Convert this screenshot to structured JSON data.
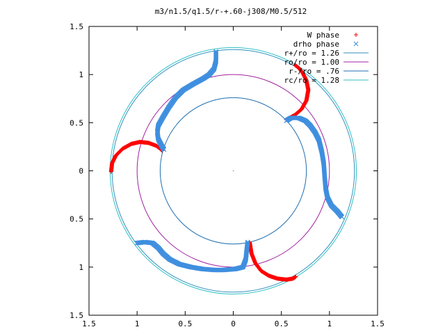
{
  "chart_data": {
    "type": "scatter",
    "title": "m3/n1.5/q1.5/r-+.60-j308/M0.5/512",
    "xlabel": "",
    "ylabel": "",
    "xlim": [
      -1.5,
      1.5
    ],
    "ylim": [
      -1.5,
      1.5
    ],
    "x_ticks": [
      -1.5,
      -1,
      -0.5,
      0,
      0.5,
      1,
      1.5
    ],
    "x_tick_labels": [
      "1.5",
      "1",
      "0.5",
      "0",
      "0.5",
      "1",
      "1.5"
    ],
    "y_ticks": [
      1.5,
      1,
      0.5,
      0,
      -0.5,
      -1,
      -1.5
    ],
    "y_tick_labels": [
      "1.5",
      "1",
      "0.5",
      "0",
      "0.5",
      "1",
      "1.5"
    ],
    "grid": false,
    "legend_position": "top-right",
    "circles": [
      {
        "label": "r+/ro = 1.26",
        "radius": 1.26,
        "color": "#2f8fbf"
      },
      {
        "label": "ro/ro = 1.00",
        "radius": 1.0,
        "color": "#a020a0"
      },
      {
        "label": "r-/ro = .76",
        "radius": 0.76,
        "color": "#1f6fb0"
      },
      {
        "label": "rc/ro = 1.28",
        "radius": 1.28,
        "color": "#30c0c0"
      }
    ],
    "series": [
      {
        "name": "W phase",
        "marker": "+",
        "color": "#ff0000",
        "arms": [
          [
            [
              -1.27,
              -0.01
            ],
            [
              -1.26,
              0.08
            ],
            [
              -1.22,
              0.16
            ],
            [
              -1.15,
              0.23
            ],
            [
              -1.06,
              0.28
            ],
            [
              -0.97,
              0.3
            ],
            [
              -0.88,
              0.29
            ],
            [
              -0.8,
              0.26
            ],
            [
              -0.76,
              0.23
            ],
            [
              -0.74,
              0.21
            ]
          ],
          [
            [
              0.17,
              -0.74
            ],
            [
              0.19,
              -0.86
            ],
            [
              0.23,
              -0.96
            ],
            [
              0.29,
              -1.04
            ],
            [
              0.37,
              -1.09
            ],
            [
              0.46,
              -1.12
            ],
            [
              0.55,
              -1.13
            ],
            [
              0.62,
              -1.12
            ],
            [
              0.65,
              -1.1
            ]
          ],
          [
            [
              0.55,
              0.53
            ],
            [
              0.64,
              0.58
            ],
            [
              0.71,
              0.64
            ],
            [
              0.76,
              0.73
            ],
            [
              0.78,
              0.84
            ],
            [
              0.76,
              0.94
            ],
            [
              0.72,
              1.02
            ],
            [
              0.68,
              1.07
            ],
            [
              0.64,
              1.1
            ]
          ]
        ]
      },
      {
        "name": "drho phase",
        "marker": "x",
        "color": "#3f8fdf",
        "arms": [
          [
            [
              -0.18,
              1.24
            ],
            [
              -0.18,
              1.14
            ],
            [
              -0.2,
              1.06
            ],
            [
              -0.25,
              1.0
            ],
            [
              -0.31,
              0.96
            ],
            [
              -0.42,
              0.9
            ],
            [
              -0.52,
              0.84
            ],
            [
              -0.6,
              0.76
            ],
            [
              -0.67,
              0.66
            ],
            [
              -0.73,
              0.56
            ],
            [
              -0.78,
              0.47
            ],
            [
              -0.79,
              0.4
            ],
            [
              -0.78,
              0.33
            ],
            [
              -0.75,
              0.27
            ],
            [
              -0.72,
              0.22
            ]
          ],
          [
            [
              -1.0,
              -0.75
            ],
            [
              -0.92,
              -0.74
            ],
            [
              -0.84,
              -0.75
            ],
            [
              -0.78,
              -0.8
            ],
            [
              -0.73,
              -0.86
            ],
            [
              -0.66,
              -0.92
            ],
            [
              -0.56,
              -0.97
            ],
            [
              -0.44,
              -1.0
            ],
            [
              -0.32,
              -1.02
            ],
            [
              -0.2,
              -1.03
            ],
            [
              -0.1,
              -1.03
            ],
            [
              0.02,
              -1.02
            ],
            [
              0.1,
              -1.0
            ],
            [
              0.13,
              -0.92
            ],
            [
              0.14,
              -0.82
            ],
            [
              0.15,
              -0.74
            ]
          ],
          [
            [
              0.55,
              0.52
            ],
            [
              0.6,
              0.55
            ],
            [
              0.68,
              0.55
            ],
            [
              0.75,
              0.52
            ],
            [
              0.8,
              0.47
            ],
            [
              0.85,
              0.4
            ],
            [
              0.89,
              0.32
            ],
            [
              0.92,
              0.2
            ],
            [
              0.94,
              0.08
            ],
            [
              0.95,
              -0.06
            ],
            [
              0.96,
              -0.18
            ],
            [
              0.98,
              -0.28
            ],
            [
              1.02,
              -0.36
            ],
            [
              1.08,
              -0.42
            ],
            [
              1.13,
              -0.48
            ]
          ]
        ]
      }
    ]
  }
}
